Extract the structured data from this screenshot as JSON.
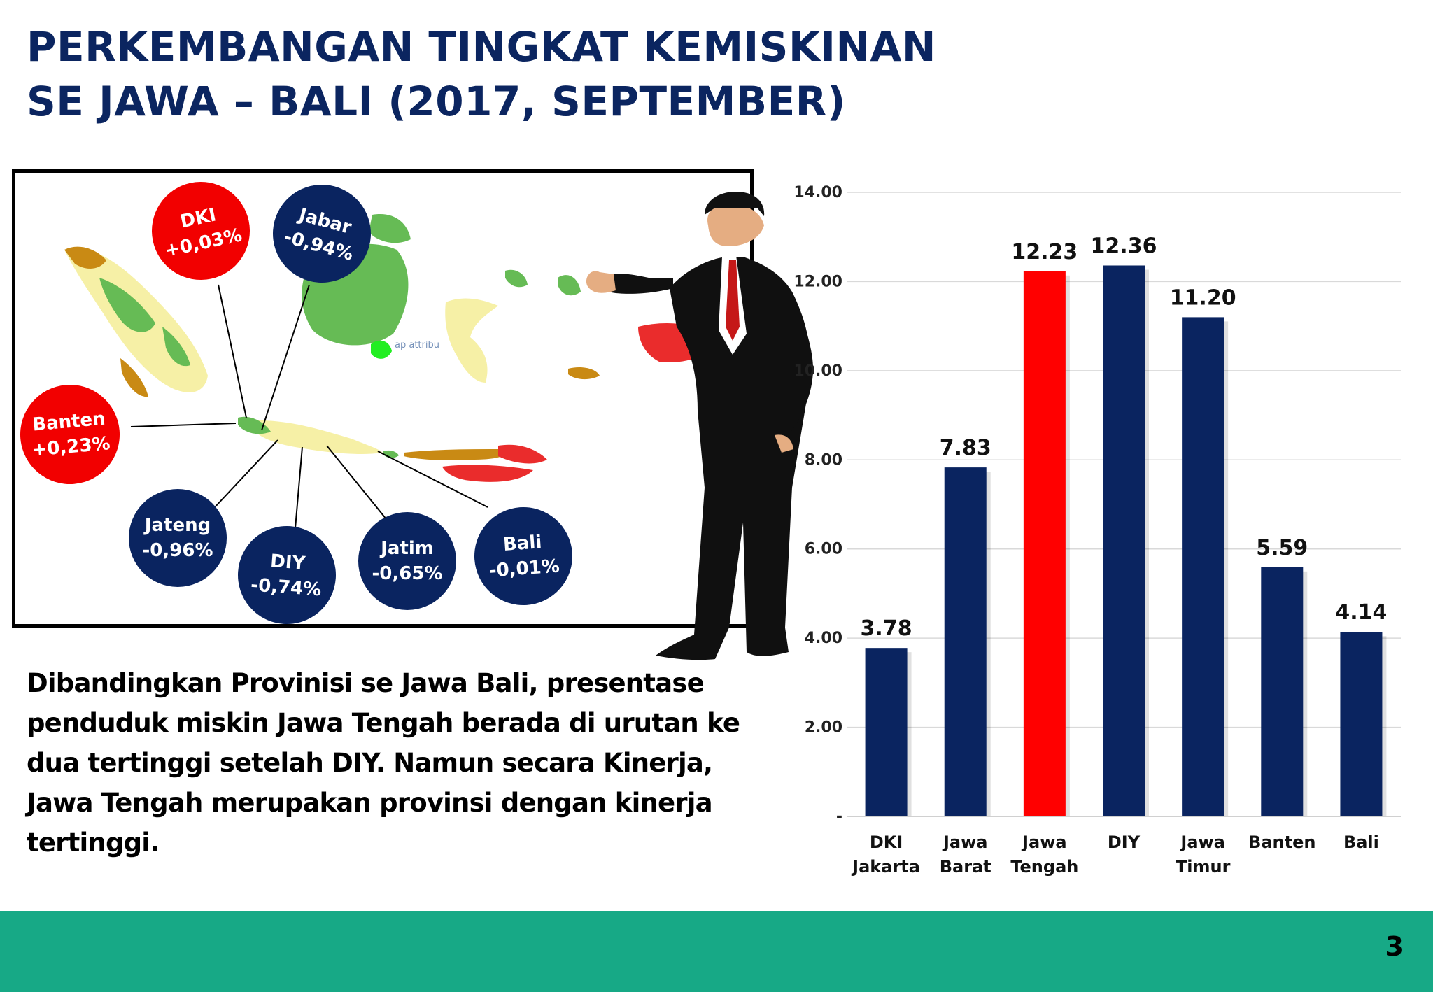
{
  "title": {
    "line1": "PERKEMBANGAN TINGKAT KEMISKINAN",
    "line2": "SE JAWA – BALI (2017, SEPTEMBER)"
  },
  "map": {
    "watermark": "ap attribu",
    "callouts": [
      {
        "name": "DKI",
        "value": "+0,03%",
        "color": "red"
      },
      {
        "name": "Jabar",
        "value": "-0,94%",
        "color": "navy"
      },
      {
        "name": "Banten",
        "value": "+0,23%",
        "color": "red"
      },
      {
        "name": "Jateng",
        "value": "-0,96%",
        "color": "navy"
      },
      {
        "name": "DIY",
        "value": "-0,74%",
        "color": "navy"
      },
      {
        "name": "Jatim",
        "value": "-0,65%",
        "color": "navy"
      },
      {
        "name": "Bali",
        "value": "-0,01%",
        "color": "navy"
      }
    ]
  },
  "summary": "Dibandingkan Provinisi se Jawa Bali, presentase penduduk miskin Jawa Tengah berada di urutan ke dua tertinggi setelah DIY. Namun secara Kinerja, Jawa Tengah merupakan provinsi dengan kinerja tertinggi.",
  "chart_data": {
    "type": "bar",
    "categories": [
      [
        "DKI",
        "Jakarta"
      ],
      [
        "Jawa",
        "Barat"
      ],
      [
        "Jawa",
        "Tengah"
      ],
      [
        "DIY"
      ],
      [
        "Jawa",
        "Timur"
      ],
      [
        "Banten"
      ],
      [
        "Bali"
      ]
    ],
    "values": [
      3.78,
      7.83,
      12.23,
      12.36,
      11.2,
      5.59,
      4.14
    ],
    "value_labels": [
      "3.78",
      "7.83",
      "12.23",
      "12.36",
      "11.20",
      "5.59",
      "4.14"
    ],
    "bar_colors": [
      "#0a2460",
      "#0a2460",
      "#ff0000",
      "#0a2460",
      "#0a2460",
      "#0a2460",
      "#0a2460"
    ],
    "yticks": [
      0,
      2,
      4,
      6,
      8,
      10,
      12,
      14
    ],
    "ytick_labels": [
      "-",
      "2.00",
      "4.00",
      "6.00",
      "8.00",
      "10.00",
      "12.00",
      "14.00"
    ],
    "ylim": [
      0,
      14
    ],
    "grid": true,
    "title": "",
    "xlabel": "",
    "ylabel": ""
  },
  "footer": {
    "page_number": "3",
    "color": "#17a986"
  }
}
